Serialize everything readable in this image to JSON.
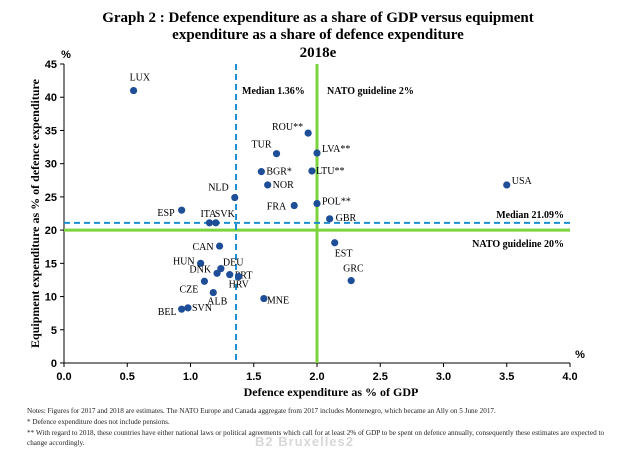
{
  "title_line1": "Graph 2 : Defence expenditure as a share of GDP versus equipment",
  "title_line2": "expenditure as a share of defence expenditure",
  "title_line3": "2018e",
  "notes": {
    "line1": "Notes: Figures for 2017 and 2018 are estimates. The NATO Europe and Canada aggregate from 2017 includes Montenegro, which became an Ally on 5 June 2017.",
    "line2": "*   Defence expenditure does not include pensions.",
    "line3": "** With regard to 2018, these countries have either national laws or political agreements which call for at least 2% of GDP to be spent on defence annually, consequently these estimates are expected to change accordingly."
  },
  "watermark": "Bruxelles2",
  "colors": {
    "point": "#1f4e99",
    "median": "#1d8fd0",
    "guideline": "#7cd33c",
    "axis": "#000000"
  },
  "chart_data": {
    "type": "scatter",
    "xlabel": "Defence expenditure as % of GDP",
    "ylabel": "Equipment expenditure as % of defence expenditure",
    "x_unit": "%",
    "y_unit": "%",
    "xlim": [
      0,
      4
    ],
    "ylim": [
      0,
      45
    ],
    "xticks": [
      "0.0",
      "0.5",
      "1.0",
      "1.5",
      "2.0",
      "2.5",
      "3.0",
      "3.5",
      "4.0"
    ],
    "yticks": [
      "0",
      "5",
      "10",
      "15",
      "20",
      "25",
      "30",
      "35",
      "40",
      "45"
    ],
    "grid": false,
    "reference_lines": [
      {
        "axis": "x",
        "value": 1.36,
        "label": "Median 1.36%",
        "style": "dashed",
        "color": "#1d8fd0"
      },
      {
        "axis": "x",
        "value": 2.0,
        "label": "NATO guideline 2%",
        "style": "solid",
        "color": "#7cd33c"
      },
      {
        "axis": "y",
        "value": 21.09,
        "label": "Median 21.09%",
        "style": "dashed",
        "color": "#1d8fd0"
      },
      {
        "axis": "y",
        "value": 20,
        "label": "NATO guideline 20%",
        "style": "solid",
        "color": "#7cd33c"
      }
    ],
    "points": [
      {
        "label": "LUX",
        "x": 0.55,
        "y": 41.0
      },
      {
        "label": "USA",
        "x": 3.5,
        "y": 26.8
      },
      {
        "label": "ROU**",
        "x": 1.93,
        "y": 34.6
      },
      {
        "label": "LVA**",
        "x": 2.0,
        "y": 31.6
      },
      {
        "label": "TUR",
        "x": 1.68,
        "y": 31.5
      },
      {
        "label": "BGR*",
        "x": 1.56,
        "y": 28.8
      },
      {
        "label": "LTU**",
        "x": 1.96,
        "y": 28.9
      },
      {
        "label": "NOR",
        "x": 1.61,
        "y": 26.8
      },
      {
        "label": "NLD",
        "x": 1.35,
        "y": 24.9
      },
      {
        "label": "FRA",
        "x": 1.82,
        "y": 23.7
      },
      {
        "label": "POL**",
        "x": 2.0,
        "y": 24.0
      },
      {
        "label": "GBR",
        "x": 2.1,
        "y": 21.7
      },
      {
        "label": "ESP",
        "x": 0.93,
        "y": 23.0
      },
      {
        "label": "ITA",
        "x": 1.15,
        "y": 21.1
      },
      {
        "label": "SVK",
        "x": 1.2,
        "y": 21.1
      },
      {
        "label": "CAN",
        "x": 1.23,
        "y": 17.6
      },
      {
        "label": "EST",
        "x": 2.14,
        "y": 18.1
      },
      {
        "label": "HUN",
        "x": 1.08,
        "y": 15.0
      },
      {
        "label": "DEU",
        "x": 1.24,
        "y": 14.2
      },
      {
        "label": "DNK",
        "x": 1.21,
        "y": 13.5
      },
      {
        "label": "PRT",
        "x": 1.31,
        "y": 13.3
      },
      {
        "label": "HRV",
        "x": 1.38,
        "y": 13.0
      },
      {
        "label": "GRC",
        "x": 2.27,
        "y": 12.4
      },
      {
        "label": "CZE",
        "x": 1.11,
        "y": 12.3
      },
      {
        "label": "ALB",
        "x": 1.18,
        "y": 10.6
      },
      {
        "label": "MNE",
        "x": 1.58,
        "y": 9.7
      },
      {
        "label": "SVN",
        "x": 0.98,
        "y": 8.3
      },
      {
        "label": "BEL",
        "x": 0.93,
        "y": 8.1
      }
    ]
  }
}
